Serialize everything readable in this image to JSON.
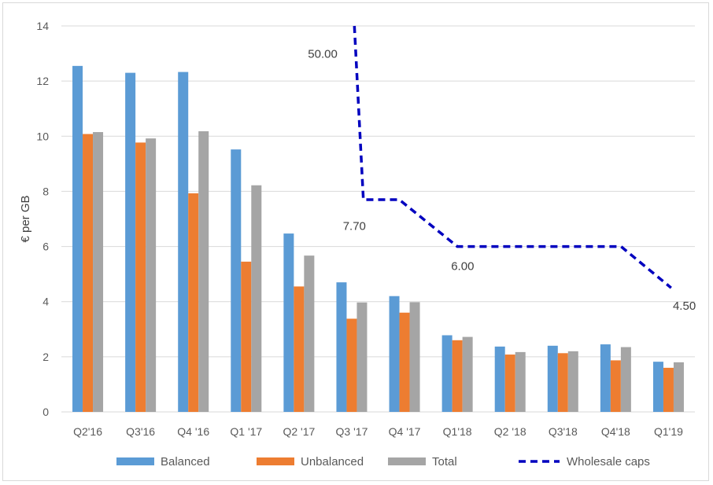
{
  "chart_data": {
    "type": "bar",
    "ylabel": "€ per GB",
    "xlabel": "",
    "ylim": [
      0,
      14
    ],
    "yticks": [
      "0",
      "2",
      "4",
      "6",
      "8",
      "10",
      "12",
      "14"
    ],
    "grid": "horizontal",
    "legend_position": "bottom",
    "categories": [
      "Q2'16",
      "Q3'16",
      "Q4 '16",
      "Q1 '17",
      "Q2 '17",
      "Q3 '17",
      "Q4 '17",
      "Q1'18",
      "Q2 '18",
      "Q3'18",
      "Q4'18",
      "Q1'19"
    ],
    "series": [
      {
        "name": "Balanced",
        "color": "#5b9bd5",
        "values": [
          12.55,
          12.3,
          12.33,
          9.52,
          6.47,
          4.7,
          4.2,
          2.78,
          2.37,
          2.4,
          2.45,
          1.82
        ]
      },
      {
        "name": "Unbalanced",
        "color": "#ed7d31",
        "values": [
          10.08,
          9.77,
          7.93,
          5.45,
          4.55,
          3.38,
          3.6,
          2.6,
          2.08,
          2.13,
          1.87,
          1.6
        ]
      },
      {
        "name": "Total",
        "color": "#a5a5a5",
        "values": [
          10.15,
          9.92,
          10.18,
          8.22,
          5.67,
          3.97,
          3.98,
          2.72,
          2.17,
          2.2,
          2.35,
          1.8
        ]
      }
    ],
    "line_series": {
      "name": "Wholesale caps",
      "color": "#0000bf",
      "style": "dashed",
      "points": [
        {
          "x": 5.05,
          "y": 14
        },
        {
          "x": 5.22,
          "y": 7.7
        },
        {
          "x": 5.9,
          "y": 7.7
        },
        {
          "x": 7.0,
          "y": 6.0
        },
        {
          "x": 10.1,
          "y": 6.0
        },
        {
          "x": 11.05,
          "y": 4.5
        }
      ]
    },
    "annotations": [
      {
        "text": "50.00",
        "x": 4.45,
        "y": 12.85
      },
      {
        "text": "7.70",
        "x": 5.05,
        "y": 6.6
      },
      {
        "text": "6.00",
        "x": 7.1,
        "y": 5.15
      },
      {
        "text": "4.50",
        "x": 11.3,
        "y": 3.7
      }
    ],
    "legend": [
      {
        "label": "Balanced",
        "kind": "bar",
        "color": "#5b9bd5"
      },
      {
        "label": "Unbalanced",
        "kind": "bar",
        "color": "#ed7d31"
      },
      {
        "label": "Total",
        "kind": "bar",
        "color": "#a5a5a5"
      },
      {
        "label": "Wholesale caps",
        "kind": "dashed-line",
        "color": "#0000bf"
      }
    ]
  }
}
